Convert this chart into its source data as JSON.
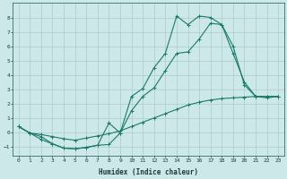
{
  "title": "",
  "xlabel": "Humidex (Indice chaleur)",
  "bg_color": "#cce8e8",
  "grid_color": "#aacccc",
  "line_color": "#1a7a6a",
  "xlim": [
    -0.5,
    23.5
  ],
  "ylim": [
    -1.6,
    9.0
  ],
  "xticks": [
    0,
    1,
    2,
    3,
    4,
    5,
    6,
    7,
    8,
    9,
    10,
    11,
    12,
    13,
    14,
    15,
    16,
    17,
    18,
    19,
    20,
    21,
    22,
    23
  ],
  "yticks": [
    -1,
    0,
    1,
    2,
    3,
    4,
    5,
    6,
    7,
    8
  ],
  "line1_x": [
    0,
    1,
    2,
    3,
    4,
    5,
    6,
    7,
    8,
    9,
    10,
    11,
    12,
    13,
    14,
    15,
    16,
    17,
    18,
    19,
    20,
    21,
    22,
    23
  ],
  "line1_y": [
    0.4,
    -0.05,
    -0.3,
    -0.8,
    -1.1,
    -1.15,
    -1.05,
    -0.9,
    0.65,
    -0.05,
    2.5,
    3.05,
    4.5,
    5.5,
    8.1,
    7.5,
    8.1,
    8.0,
    7.5,
    6.0,
    3.3,
    2.5,
    2.5,
    2.5
  ],
  "line2_x": [
    0,
    1,
    2,
    3,
    4,
    5,
    6,
    7,
    8,
    9,
    10,
    11,
    12,
    13,
    14,
    15,
    16,
    17,
    18,
    19,
    20,
    21,
    22,
    23
  ],
  "line2_y": [
    0.4,
    -0.05,
    -0.5,
    -0.8,
    -1.1,
    -1.15,
    -1.05,
    -0.9,
    -0.85,
    -0.05,
    1.5,
    2.5,
    3.1,
    4.3,
    5.5,
    5.6,
    6.5,
    7.6,
    7.5,
    5.5,
    3.5,
    2.5,
    2.4,
    2.5
  ],
  "line3_x": [
    0,
    1,
    2,
    3,
    4,
    5,
    6,
    7,
    8,
    9,
    10,
    11,
    12,
    13,
    14,
    15,
    16,
    17,
    18,
    19,
    20,
    21,
    22,
    23
  ],
  "line3_y": [
    0.4,
    -0.05,
    -0.15,
    -0.3,
    -0.45,
    -0.55,
    -0.4,
    -0.25,
    -0.1,
    0.1,
    0.4,
    0.7,
    1.0,
    1.3,
    1.6,
    1.9,
    2.1,
    2.25,
    2.35,
    2.4,
    2.45,
    2.5,
    2.5,
    2.5
  ]
}
